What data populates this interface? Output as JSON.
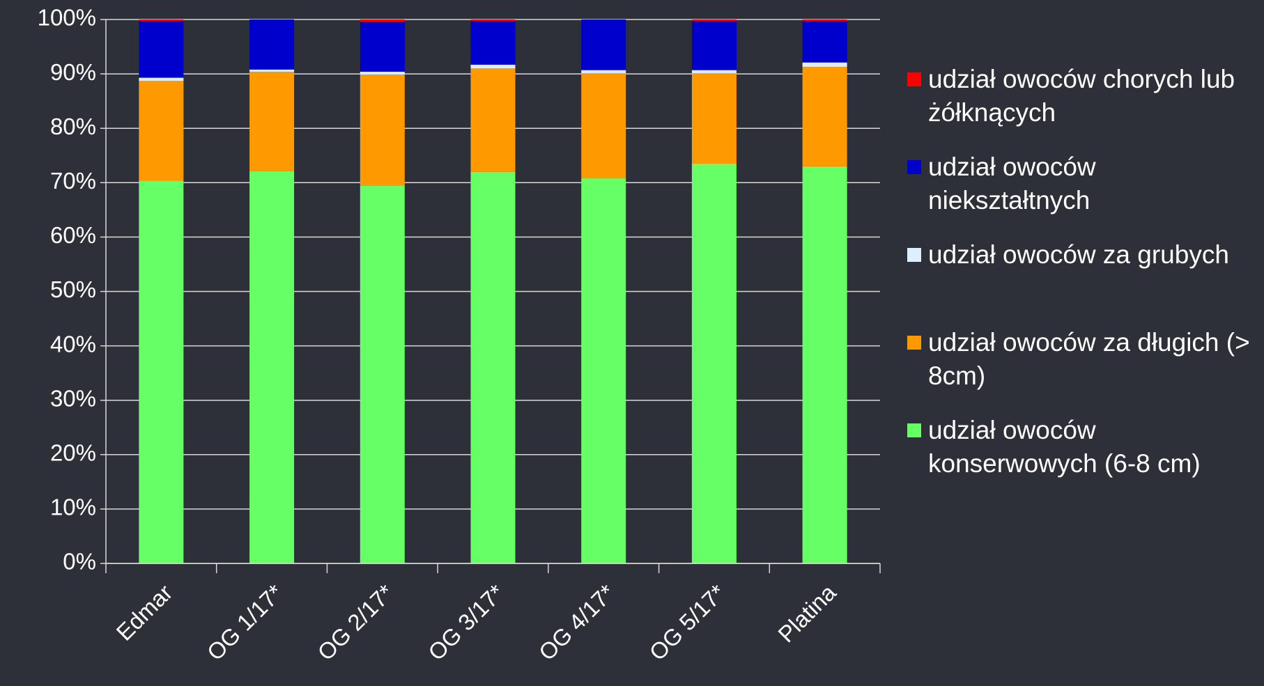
{
  "chart_data": {
    "type": "stacked_bar",
    "categories": [
      "Edmar",
      "OG 1/17*",
      "OG 2/17*",
      "OG 3/17*",
      "OG 4/17*",
      "OG 5/17*",
      "Platina"
    ],
    "series": [
      {
        "name": "udział owoców konserwowych (6-8 cm)",
        "color": "#66ff66",
        "values": [
          70.4,
          72.1,
          69.5,
          72.0,
          70.8,
          73.5,
          73.0
        ]
      },
      {
        "name": "udział owoców za długich (> 8cm)",
        "color": "#ff9900",
        "values": [
          18.3,
          18.3,
          20.4,
          19.0,
          19.3,
          16.6,
          18.3
        ]
      },
      {
        "name": "udział owoców za grubych",
        "color": "#ddeeff",
        "values": [
          0.6,
          0.4,
          0.5,
          0.7,
          0.6,
          0.6,
          0.8
        ]
      },
      {
        "name": "udział owoców niekształtnych",
        "color": "#0000cc",
        "values": [
          10.4,
          9.2,
          9.2,
          8.0,
          9.3,
          9.0,
          7.6
        ]
      },
      {
        "name": "udział owoców chorych lub żółknących",
        "color": "#ff0000",
        "values": [
          0.3,
          0.0,
          0.4,
          0.3,
          0.0,
          0.3,
          0.3
        ]
      }
    ],
    "ylim": [
      0,
      100
    ],
    "yticks": [
      {
        "value": 0,
        "label": "0%"
      },
      {
        "value": 10,
        "label": "10%"
      },
      {
        "value": 20,
        "label": "20%"
      },
      {
        "value": 30,
        "label": "30%"
      },
      {
        "value": 40,
        "label": "40%"
      },
      {
        "value": 50,
        "label": "50%"
      },
      {
        "value": 60,
        "label": "60%"
      },
      {
        "value": 70,
        "label": "70%"
      },
      {
        "value": 80,
        "label": "80%"
      },
      {
        "value": 90,
        "label": "90%"
      },
      {
        "value": 100,
        "label": "100%"
      }
    ],
    "grid": true,
    "legend": "right"
  }
}
